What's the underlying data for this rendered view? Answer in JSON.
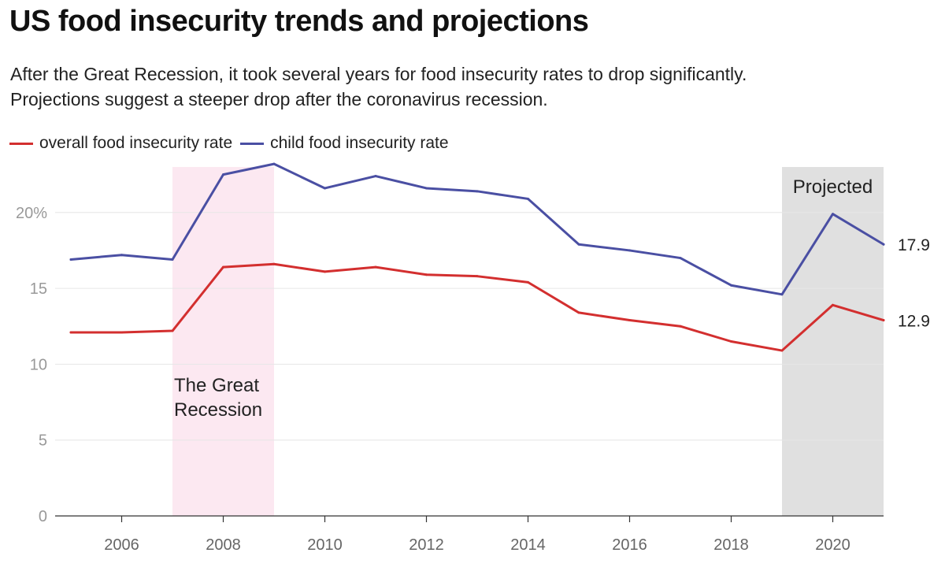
{
  "title": "US food insecurity trends and projections",
  "subtitle": [
    "After the Great Recession, it took several years for food insecurity rates to drop significantly.",
    "Projections suggest a steeper drop after the coronavirus recession."
  ],
  "colors": {
    "overall": "#d32f2f",
    "child": "#4a4fa3",
    "recession_band": "#fce8f1",
    "projected_band": "#e0e0e0",
    "grid": "#e6e6e6"
  },
  "chart_data": {
    "type": "line",
    "title": "US food insecurity trends and projections",
    "xlabel": "",
    "ylabel": "",
    "x": [
      2005,
      2006,
      2007,
      2008,
      2009,
      2010,
      2011,
      2012,
      2013,
      2014,
      2015,
      2016,
      2017,
      2018,
      2019,
      2020,
      2021
    ],
    "xlim": [
      2005,
      2021
    ],
    "ylim": [
      0,
      23
    ],
    "x_ticks": [
      2006,
      2008,
      2010,
      2012,
      2014,
      2016,
      2018,
      2020
    ],
    "y_ticks": [
      {
        "value": 0,
        "label": "0"
      },
      {
        "value": 5,
        "label": "5"
      },
      {
        "value": 10,
        "label": "10"
      },
      {
        "value": 15,
        "label": "15"
      },
      {
        "value": 20,
        "label": "20%"
      }
    ],
    "grid": true,
    "legend_position": "top-left",
    "series": [
      {
        "key": "overall",
        "name": "overall food insecurity rate",
        "values": [
          12.1,
          12.1,
          12.2,
          16.4,
          16.6,
          16.1,
          16.4,
          15.9,
          15.8,
          15.4,
          13.4,
          12.9,
          12.5,
          11.5,
          10.9,
          13.9,
          12.9
        ],
        "end_label": "12.9"
      },
      {
        "key": "child",
        "name": "child food insecurity rate",
        "values": [
          16.9,
          17.2,
          16.9,
          22.5,
          23.2,
          21.6,
          22.4,
          21.6,
          21.4,
          20.9,
          17.9,
          17.5,
          17.0,
          15.2,
          14.6,
          19.9,
          17.9
        ],
        "end_label": "17.9"
      }
    ],
    "annotations": [
      {
        "type": "band",
        "x_start": 2007,
        "x_end": 2009,
        "label_lines": [
          "The Great",
          "Recession"
        ],
        "color_key": "recession_band"
      },
      {
        "type": "band",
        "x_start": 2019,
        "x_end": 2021,
        "label_lines": [
          "Projected"
        ],
        "color_key": "projected_band"
      }
    ]
  }
}
